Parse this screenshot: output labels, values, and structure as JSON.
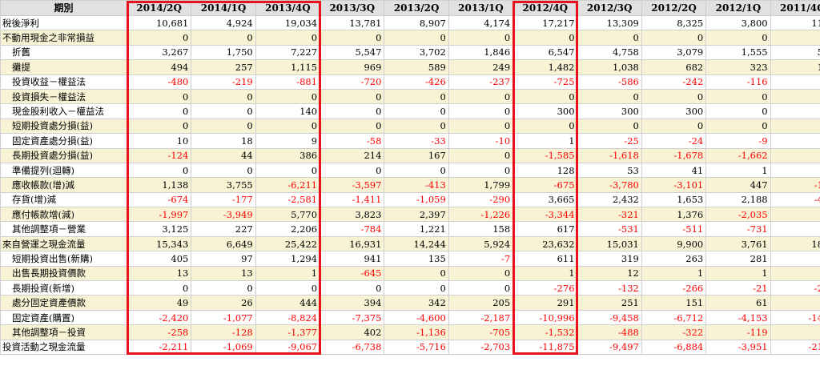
{
  "header": {
    "label": "期別",
    "periods": [
      "2014/2Q",
      "2014/1Q",
      "2013/4Q",
      "2013/3Q",
      "2013/2Q",
      "2013/1Q",
      "2012/4Q",
      "2012/3Q",
      "2012/2Q",
      "2012/1Q",
      "2011/4Q"
    ]
  },
  "highlight_color": "#e8121d",
  "rows": [
    {
      "label": "稅後淨利",
      "indent": false,
      "alt": false,
      "values": [
        "10,681",
        "4,924",
        "19,034",
        "13,781",
        "8,907",
        "4,174",
        "17,217",
        "13,309",
        "8,325",
        "3,800",
        "11,9"
      ]
    },
    {
      "label": "不動用現金之非常損益",
      "indent": false,
      "alt": true,
      "values": [
        "0",
        "0",
        "0",
        "0",
        "0",
        "0",
        "0",
        "0",
        "0",
        "0",
        "0"
      ]
    },
    {
      "label": "折舊",
      "indent": true,
      "alt": false,
      "values": [
        "3,267",
        "1,750",
        "7,227",
        "5,547",
        "3,702",
        "1,846",
        "6,547",
        "4,758",
        "3,079",
        "1,555",
        "5,4"
      ]
    },
    {
      "label": "攤提",
      "indent": true,
      "alt": true,
      "values": [
        "494",
        "257",
        "1,115",
        "969",
        "589",
        "249",
        "1,482",
        "1,038",
        "682",
        "323",
        "1,0"
      ]
    },
    {
      "label": "投資收益－權益法",
      "indent": true,
      "alt": false,
      "values": [
        "-480",
        "-219",
        "-881",
        "-720",
        "-426",
        "-237",
        "-725",
        "-586",
        "-242",
        "-116",
        "-5"
      ]
    },
    {
      "label": "投資損失－權益法",
      "indent": true,
      "alt": true,
      "values": [
        "0",
        "0",
        "0",
        "0",
        "0",
        "0",
        "0",
        "0",
        "0",
        "0",
        "0"
      ]
    },
    {
      "label": "現金股利收入－權益法",
      "indent": true,
      "alt": false,
      "values": [
        "0",
        "0",
        "140",
        "0",
        "0",
        "0",
        "300",
        "300",
        "300",
        "0",
        "5"
      ]
    },
    {
      "label": "短期投資處分損(益)",
      "indent": true,
      "alt": true,
      "values": [
        "0",
        "0",
        "0",
        "0",
        "0",
        "0",
        "0",
        "0",
        "0",
        "0",
        "0"
      ]
    },
    {
      "label": "固定資產處分損(益)",
      "indent": true,
      "alt": false,
      "values": [
        "10",
        "18",
        "9",
        "-58",
        "-33",
        "-10",
        "1",
        "-25",
        "-24",
        "-9",
        ""
      ]
    },
    {
      "label": "長期投資處分損(益)",
      "indent": true,
      "alt": true,
      "values": [
        "-124",
        "44",
        "386",
        "214",
        "167",
        "0",
        "-1,585",
        "-1,618",
        "-1,678",
        "-1,662",
        "-2"
      ]
    },
    {
      "label": "準備提列(迴轉)",
      "indent": true,
      "alt": false,
      "values": [
        "0",
        "0",
        "0",
        "0",
        "0",
        "0",
        "128",
        "53",
        "41",
        "1",
        "4"
      ]
    },
    {
      "label": "應收帳款(增)減",
      "indent": true,
      "alt": true,
      "values": [
        "1,138",
        "3,755",
        "-6,211",
        "-3,597",
        "-413",
        "1,799",
        "-675",
        "-3,780",
        "-3,101",
        "447",
        "-1,3"
      ]
    },
    {
      "label": "存貨(增)減",
      "indent": true,
      "alt": false,
      "values": [
        "-674",
        "-177",
        "-2,581",
        "-1,411",
        "-1,059",
        "-290",
        "3,665",
        "2,432",
        "1,653",
        "2,188",
        "-4,3"
      ]
    },
    {
      "label": "應付帳款增(減)",
      "indent": true,
      "alt": true,
      "values": [
        "-1,997",
        "-3,949",
        "5,770",
        "3,823",
        "2,397",
        "-1,226",
        "-3,344",
        "-321",
        "1,376",
        "-2,035",
        "8"
      ]
    },
    {
      "label": "其他調整項－營業",
      "indent": true,
      "alt": false,
      "values": [
        "3,125",
        "227",
        "2,206",
        "-784",
        "1,221",
        "158",
        "617",
        "-531",
        "-511",
        "-731",
        "5"
      ]
    },
    {
      "label": "來自營運之現金流量",
      "indent": false,
      "alt": true,
      "values": [
        "15,343",
        "6,649",
        "25,422",
        "16,931",
        "14,244",
        "5,924",
        "23,632",
        "15,031",
        "9,900",
        "3,761",
        "18,0"
      ]
    },
    {
      "label": "短期投資出售(新購)",
      "indent": true,
      "alt": false,
      "values": [
        "405",
        "97",
        "1,294",
        "941",
        "135",
        "-7",
        "611",
        "319",
        "263",
        "281",
        "1"
      ]
    },
    {
      "label": "出售長期投資價款",
      "indent": true,
      "alt": true,
      "values": [
        "13",
        "13",
        "1",
        "-645",
        "0",
        "0",
        "1",
        "12",
        "1",
        "1",
        "1"
      ]
    },
    {
      "label": "長期投資(新增)",
      "indent": true,
      "alt": false,
      "values": [
        "0",
        "0",
        "0",
        "0",
        "0",
        "0",
        "-276",
        "-132",
        "-266",
        "-21",
        "-2,9"
      ]
    },
    {
      "label": "處分固定資產價款",
      "indent": true,
      "alt": true,
      "values": [
        "49",
        "26",
        "444",
        "394",
        "342",
        "205",
        "291",
        "251",
        "151",
        "61",
        "8"
      ]
    },
    {
      "label": "固定資產(購置)",
      "indent": true,
      "alt": false,
      "values": [
        "-2,420",
        "-1,077",
        "-8,824",
        "-7,375",
        "-4,600",
        "-2,187",
        "-10,996",
        "-9,458",
        "-6,712",
        "-4,153",
        "-14,1"
      ]
    },
    {
      "label": "其他調整項－投資",
      "indent": true,
      "alt": true,
      "values": [
        "-258",
        "-128",
        "-1,377",
        "402",
        "-1,136",
        "-705",
        "-1,532",
        "-488",
        "-322",
        "-119",
        "-3"
      ]
    },
    {
      "label": "投資活動之現金流量",
      "indent": false,
      "alt": false,
      "values": [
        "-2,211",
        "-1,069",
        "-9,067",
        "-6,738",
        "-5,716",
        "-2,703",
        "-11,875",
        "-9,497",
        "-6,884",
        "-3,951",
        "-21,8"
      ]
    }
  ]
}
